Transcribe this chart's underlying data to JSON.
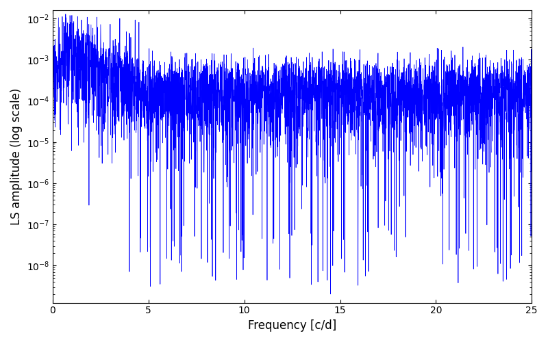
{
  "title": "",
  "xlabel": "Frequency [c/d]",
  "ylabel": "LS amplitude (log scale)",
  "xlim": [
    0,
    25
  ],
  "ylim_log_min": -8.9,
  "ylim_log_max": -1.8,
  "line_color": "blue",
  "background_color": "#ffffff",
  "figsize": [
    8.0,
    5.0
  ],
  "dpi": 100,
  "seed": 7,
  "n_points": 4000,
  "freq_max": 25.0
}
